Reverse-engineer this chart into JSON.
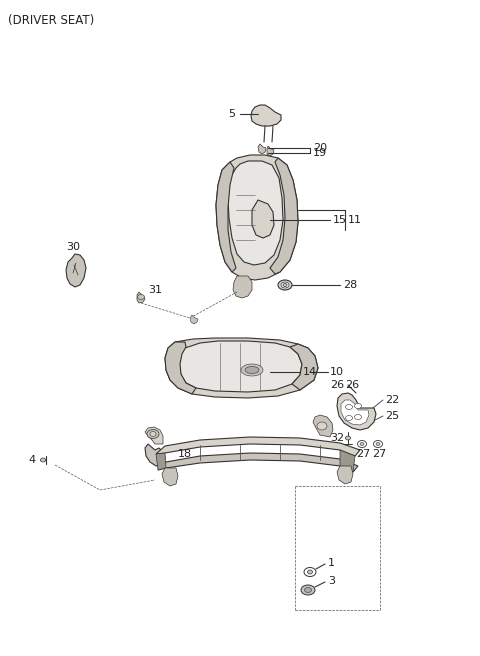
{
  "title": "(DRIVER SEAT)",
  "bg_color": "#ffffff",
  "line_color": "#333333",
  "label_color": "#222222",
  "gray_fill": "#e8e6e2",
  "gray_dark": "#c8c4bc",
  "gray_mid": "#d8d4cc"
}
